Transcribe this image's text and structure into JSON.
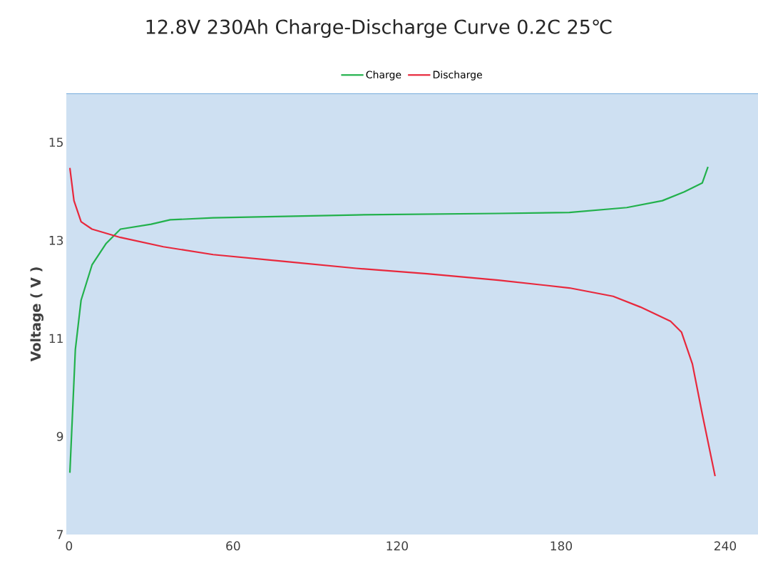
{
  "chart_data": {
    "type": "line",
    "title": "12.8V 230Ah Charge-Discharge Curve 0.2C 25℃",
    "ylabel": "Voltage ( V )",
    "xlim": [
      -1,
      252
    ],
    "xticks": [
      0,
      60,
      120,
      180,
      240
    ],
    "ylim": [
      7,
      16
    ],
    "yticks": [
      7,
      9,
      11,
      13,
      15
    ],
    "grid": false,
    "legend": "top",
    "series": [
      {
        "name": "Charge",
        "color": "#22b14c",
        "x": [
          0.3,
          2.3,
          4.4,
          8.4,
          13.6,
          18.8,
          30,
          37,
          52.7,
          105,
          157,
          183,
          204,
          217,
          225,
          231.6,
          233.7
        ],
        "values": [
          8.26,
          10.77,
          11.78,
          12.5,
          12.94,
          13.23,
          13.33,
          13.42,
          13.46,
          13.52,
          13.55,
          13.57,
          13.67,
          13.81,
          13.99,
          14.17,
          14.5
        ]
      },
      {
        "name": "Discharge",
        "color": "#e8283c",
        "x": [
          0.3,
          1.8,
          4.4,
          8.4,
          18.8,
          34.5,
          52.7,
          78.9,
          105,
          131,
          157,
          183,
          199,
          209,
          220,
          224,
          228,
          231.6,
          236.3
        ],
        "values": [
          14.48,
          13.81,
          13.38,
          13.23,
          13.06,
          12.87,
          12.71,
          12.57,
          12.43,
          12.32,
          12.19,
          12.03,
          11.86,
          11.64,
          11.35,
          11.13,
          10.48,
          9.46,
          8.19
        ]
      }
    ]
  }
}
